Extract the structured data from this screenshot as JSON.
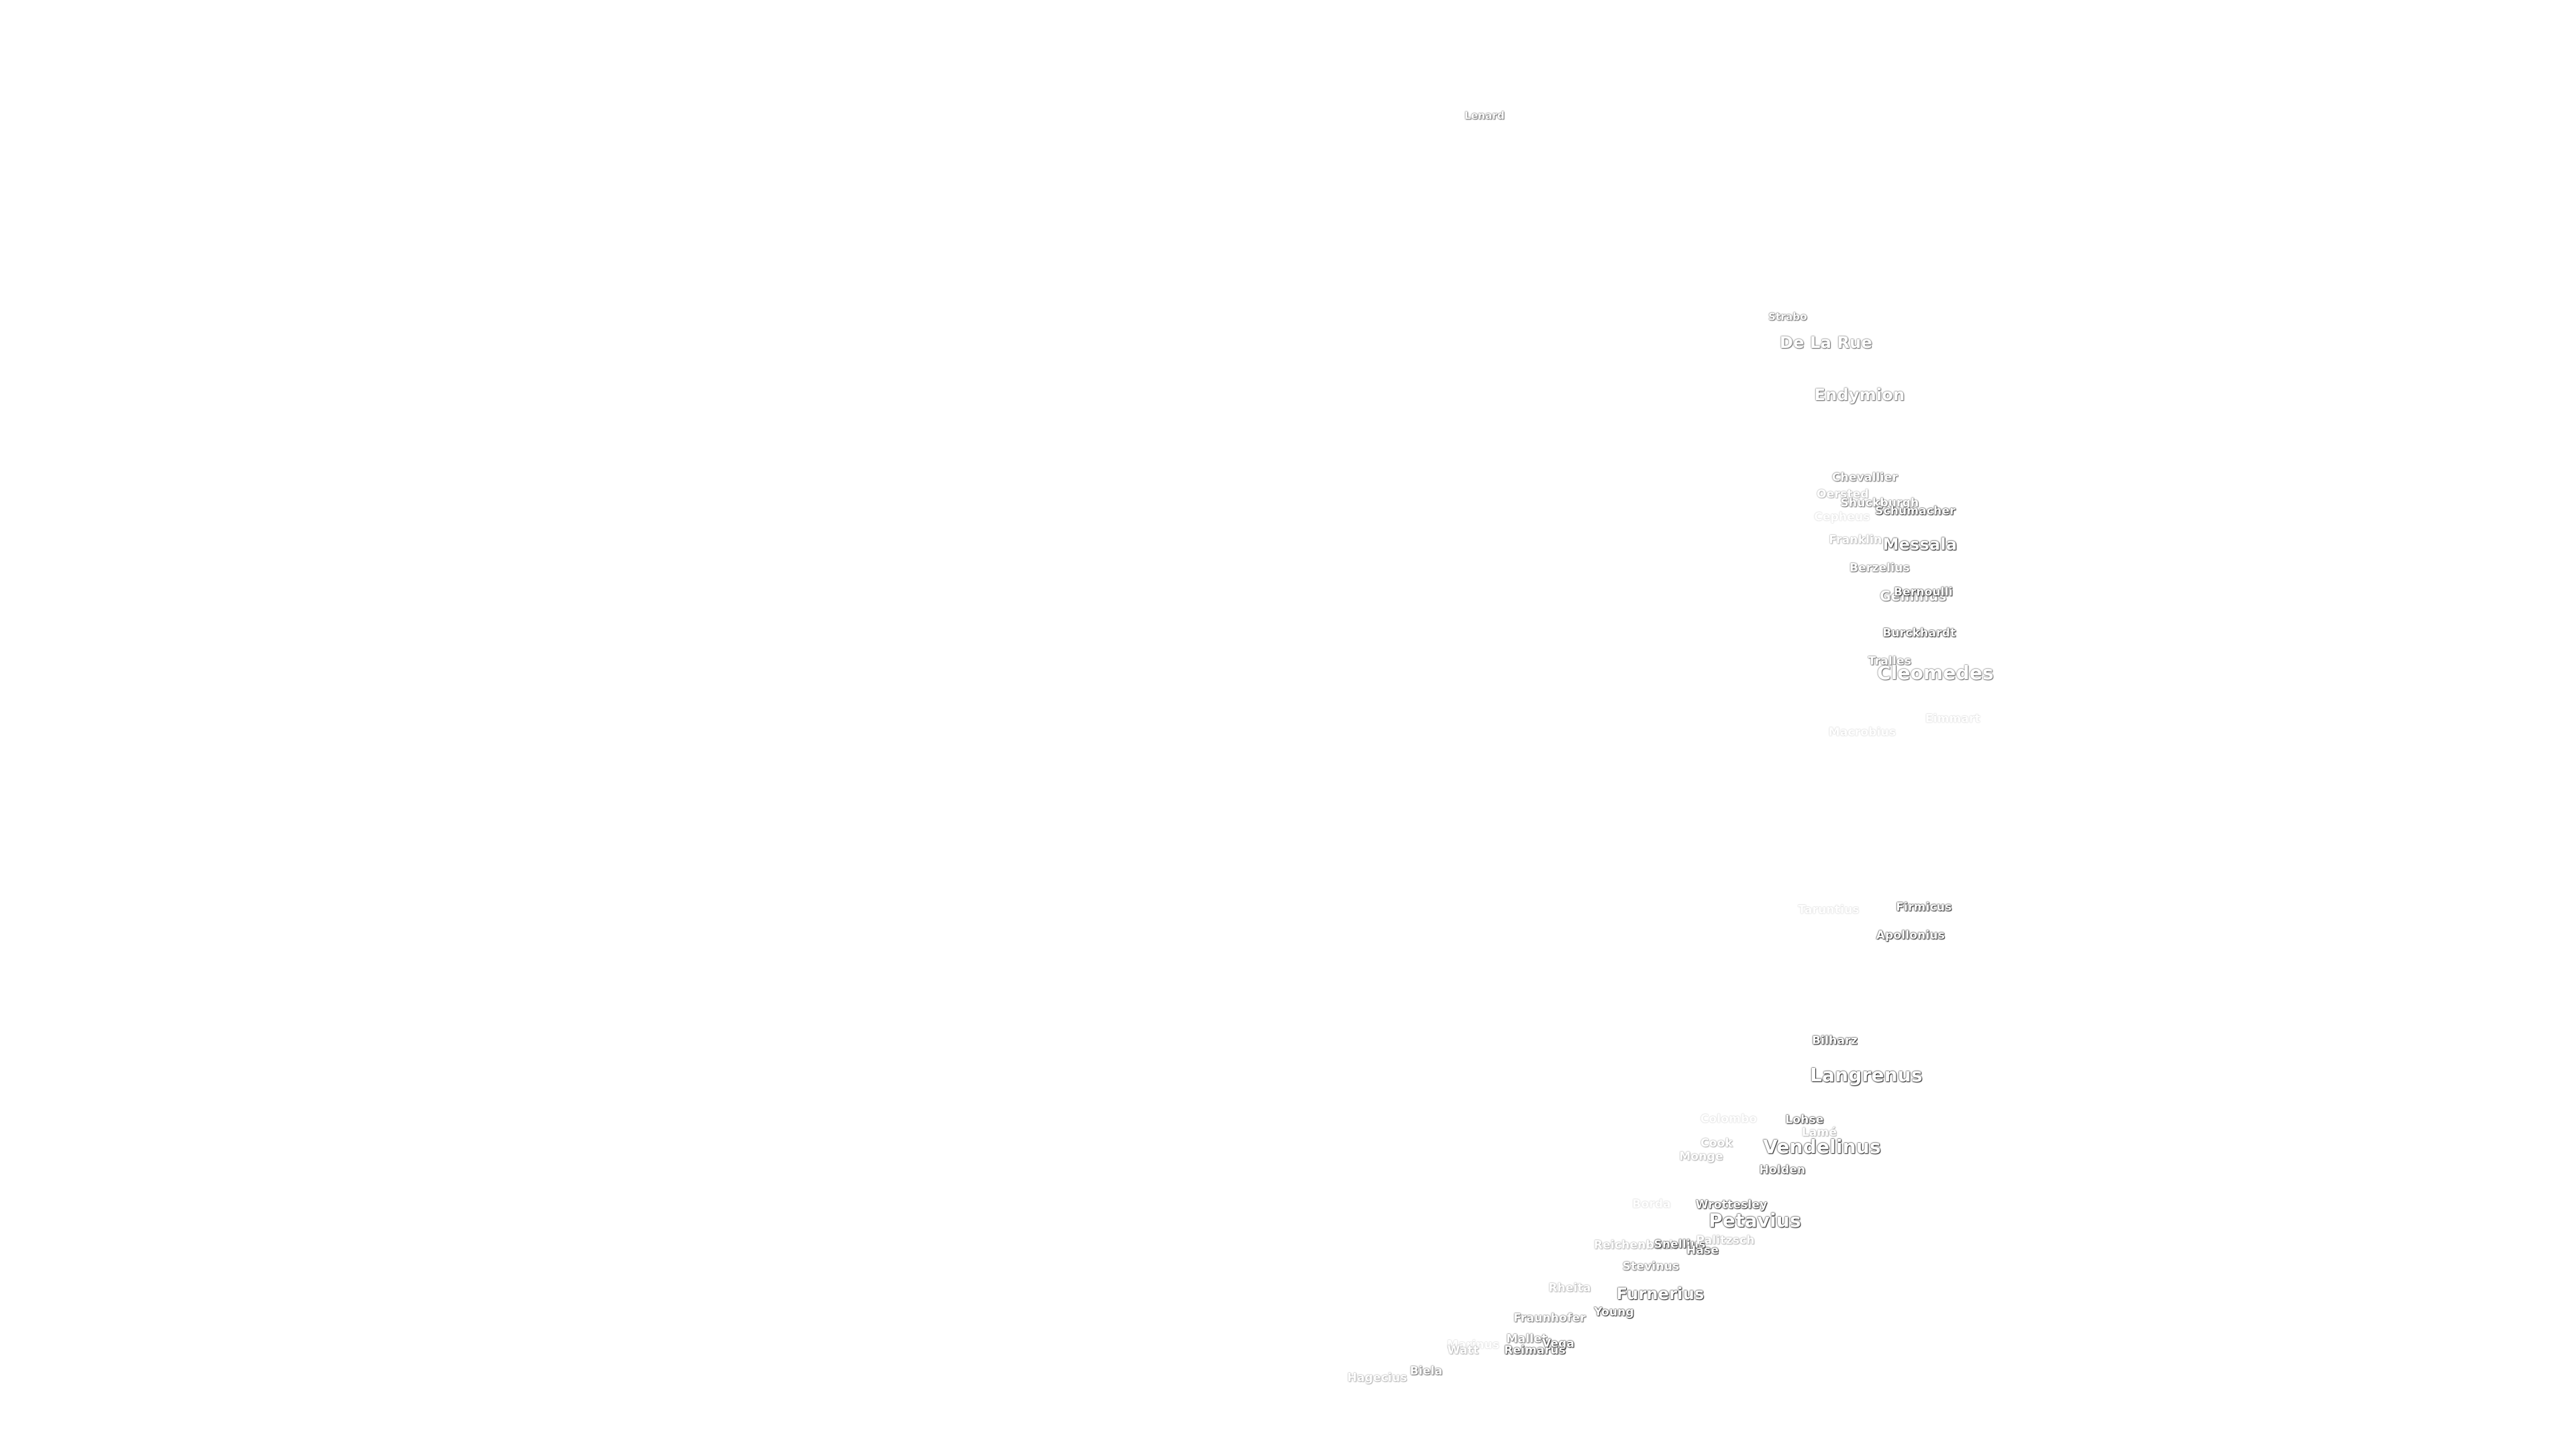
{
  "map": {
    "craters": [
      "Lenard",
      "Strabo",
      "De La Rue",
      "Endymion",
      "Chevallier",
      "Oersted",
      "Shuckburgh",
      "Schumacher",
      "Cepheus",
      "Franklin",
      "Messala",
      "Berzelius",
      "Geminus",
      "Bernoulli",
      "Burckhardt",
      "Tralles",
      "Cleomedes",
      "Macrobius",
      "Eimmart",
      "Taruntius",
      "Firmicus",
      "Apollonius",
      "Bilharz",
      "Langrenus",
      "Colombo",
      "Lohse",
      "Lamé",
      "Cook",
      "Vendelinus",
      "Monge",
      "Holden",
      "Borda",
      "Wrottesley",
      "Petavius",
      "Reichenbach",
      "Snellius",
      "Palitzsch",
      "Hase",
      "Stevinus",
      "Rheita",
      "Furnerius",
      "Young",
      "Fraunhofer",
      "Mallet",
      "Vega",
      "Marinus",
      "Reimarus",
      "Watt",
      "Biela",
      "Hagecius"
    ]
  }
}
